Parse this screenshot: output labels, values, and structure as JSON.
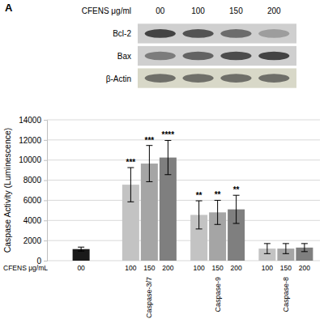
{
  "blot": {
    "panel_label": "A",
    "lane_title": "CFENS μg/ml",
    "lanes": [
      "00",
      "100",
      "150",
      "200"
    ],
    "rows": [
      {
        "label": "Bcl-2",
        "intensity": [
          0.85,
          0.75,
          0.6,
          0.3
        ]
      },
      {
        "label": "Bax",
        "intensity": [
          0.5,
          0.65,
          0.8,
          0.85
        ]
      },
      {
        "label": "β-Actin",
        "intensity": [
          0.6,
          0.6,
          0.6,
          0.6
        ]
      }
    ]
  },
  "chart_data": {
    "type": "bar",
    "y_label": "Caspase Activity (Luminescence)",
    "x_label": "CFENS μg/mL",
    "categories": [
      null,
      "Caspase-3/7",
      "Caspase-9",
      "Caspase-8"
    ],
    "series": [
      {
        "name": "00",
        "color": "#1a1a1a",
        "values": [
          1150,
          null,
          null,
          null
        ],
        "errors": [
          200,
          null,
          null,
          null
        ],
        "significance": [
          null,
          null,
          null,
          null
        ]
      },
      {
        "name": "100",
        "color": "#c3c3c3",
        "values": [
          null,
          7550,
          4550,
          1200
        ],
        "errors": [
          null,
          1700,
          1400,
          500
        ],
        "significance": [
          null,
          "***",
          "**",
          null
        ]
      },
      {
        "name": "150",
        "color": "#a5a5a5",
        "values": [
          null,
          9650,
          4800,
          1200
        ],
        "errors": [
          null,
          1800,
          1200,
          500
        ],
        "significance": [
          null,
          "***",
          "**",
          null
        ]
      },
      {
        "name": "200",
        "color": "#7f7f7f",
        "values": [
          null,
          10250,
          5100,
          1300
        ],
        "errors": [
          null,
          1700,
          1400,
          400
        ],
        "significance": [
          null,
          "****",
          "**",
          null
        ]
      }
    ],
    "ylim": [
      0,
      14000
    ],
    "yticks": [
      0,
      2000,
      4000,
      6000,
      8000,
      10000,
      12000,
      14000
    ],
    "grid": true
  }
}
